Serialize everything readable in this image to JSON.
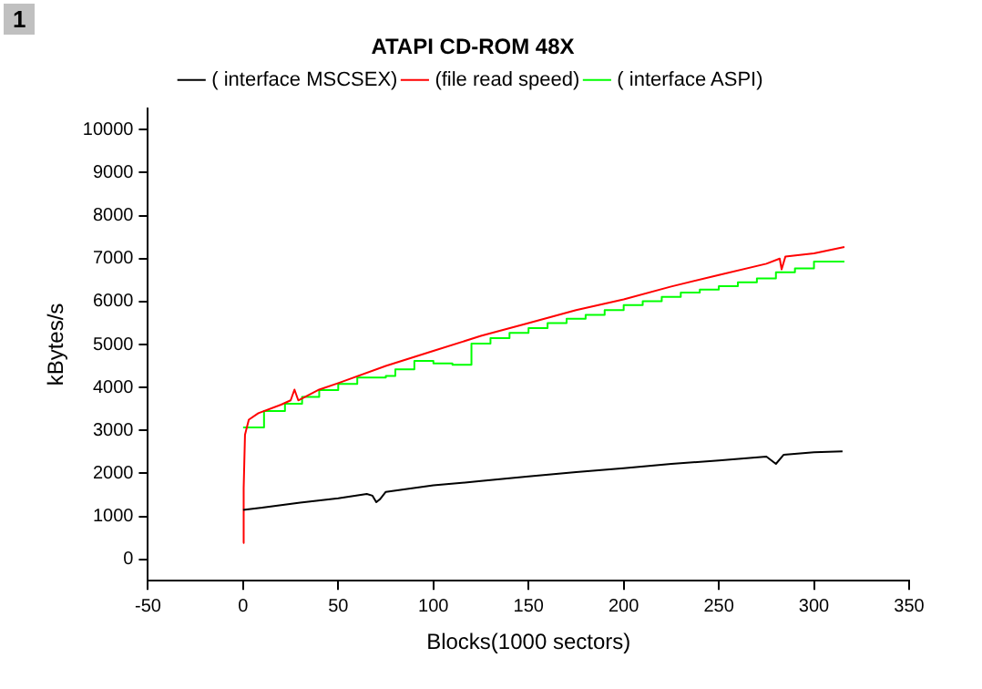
{
  "chart_data": {
    "type": "line",
    "legend_title": "ATAPI CD-ROM 48X",
    "xlabel": "Blocks(1000 sectors)",
    "ylabel": "kBytes/s",
    "annotations": [
      "1"
    ],
    "xlim": [
      -50,
      350
    ],
    "xticks": [
      -50,
      0,
      50,
      100,
      150,
      200,
      250,
      300,
      350
    ],
    "ylim": [
      -500,
      10500
    ],
    "yticks": [
      0,
      1000,
      2000,
      3000,
      4000,
      5000,
      6000,
      7000,
      8000,
      9000,
      10000
    ],
    "grid": false,
    "legend": "top",
    "marker": "none",
    "line_style": "solid",
    "series": [
      {
        "name": "( interface MSCSEX)",
        "color": "#000000",
        "x": [
          0,
          10,
          30,
          50,
          65,
          68,
          70,
          72,
          75,
          100,
          125,
          150,
          175,
          200,
          225,
          250,
          275,
          280,
          284,
          300,
          315
        ],
        "values": [
          1150,
          1200,
          1320,
          1420,
          1520,
          1480,
          1330,
          1400,
          1570,
          1720,
          1820,
          1930,
          2030,
          2120,
          2220,
          2300,
          2390,
          2220,
          2430,
          2490,
          2510
        ]
      },
      {
        "name": "(file read speed)",
        "color": "#ff0000",
        "x": [
          0,
          0.3,
          1,
          3,
          8,
          20,
          25,
          27,
          29,
          40,
          50,
          75,
          100,
          125,
          150,
          175,
          200,
          225,
          250,
          275,
          282,
          283,
          285,
          300,
          316
        ],
        "values": [
          380,
          1650,
          2900,
          3250,
          3400,
          3600,
          3700,
          3950,
          3700,
          3950,
          4100,
          4500,
          4850,
          5200,
          5500,
          5800,
          6050,
          6350,
          6620,
          6880,
          7000,
          6750,
          7050,
          7120,
          7270
        ]
      },
      {
        "name": "( interface ASPI)",
        "color": "#00ff00",
        "type": "step",
        "x": [
          0,
          11,
          22,
          31,
          40,
          50,
          60,
          75,
          80,
          90,
          100,
          110,
          120,
          130,
          140,
          150,
          160,
          170,
          180,
          190,
          200,
          210,
          220,
          230,
          240,
          250,
          260,
          270,
          280,
          290,
          300,
          316
        ],
        "values": [
          3070,
          3450,
          3620,
          3780,
          3940,
          4080,
          4230,
          4270,
          4420,
          4620,
          4560,
          4530,
          5020,
          5150,
          5270,
          5380,
          5500,
          5600,
          5690,
          5800,
          5920,
          6010,
          6110,
          6210,
          6280,
          6360,
          6450,
          6540,
          6680,
          6770,
          6930,
          6930
        ]
      }
    ]
  }
}
